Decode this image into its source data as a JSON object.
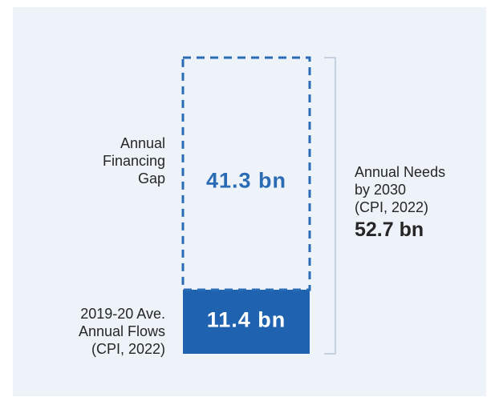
{
  "chart_data": {
    "type": "bar",
    "stacked": true,
    "categories": [
      "Annual Needs by 2030 (CPI, 2022)"
    ],
    "series": [
      {
        "name": "2019-20 Ave. Annual Flows (CPI, 2022)",
        "values": [
          11.4
        ],
        "value_label": "11.4 bn",
        "color": "#1f63b0",
        "style": "solid"
      },
      {
        "name": "Annual Financing Gap",
        "values": [
          41.3
        ],
        "value_label": "41.3 bn",
        "color": "#2a6bb5",
        "style": "dashed-outline"
      }
    ],
    "total": {
      "value": 52.7,
      "label_lines": [
        "Annual Needs",
        "by 2030",
        "(CPI, 2022)"
      ],
      "value_label": "52.7 bn"
    },
    "labels": {
      "gap_lines": [
        "Annual",
        "Financing",
        "Gap"
      ],
      "flows_lines": [
        "2019-20 Ave.",
        "Annual Flows",
        "(CPI, 2022)"
      ]
    },
    "colors": {
      "background": "#eef3f9",
      "bracket": "#b8c6d8",
      "text": "#262626"
    }
  }
}
